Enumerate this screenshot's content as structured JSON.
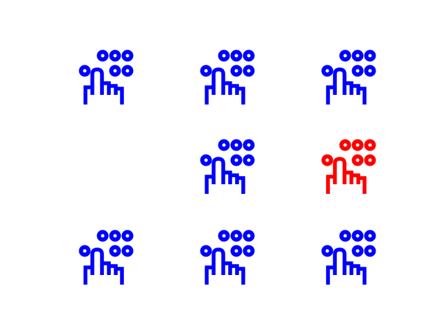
{
  "icon_name": "touch-keypad-icon",
  "colors": {
    "background": "#ffffff",
    "default": "#0000ff",
    "highlight": "#ff0000"
  },
  "grid": {
    "rows": 3,
    "cols": 3,
    "cells": [
      [
        "default",
        "default",
        "default"
      ],
      [
        "empty",
        "default",
        "highlight"
      ],
      [
        "default",
        "default",
        "default"
      ]
    ]
  }
}
